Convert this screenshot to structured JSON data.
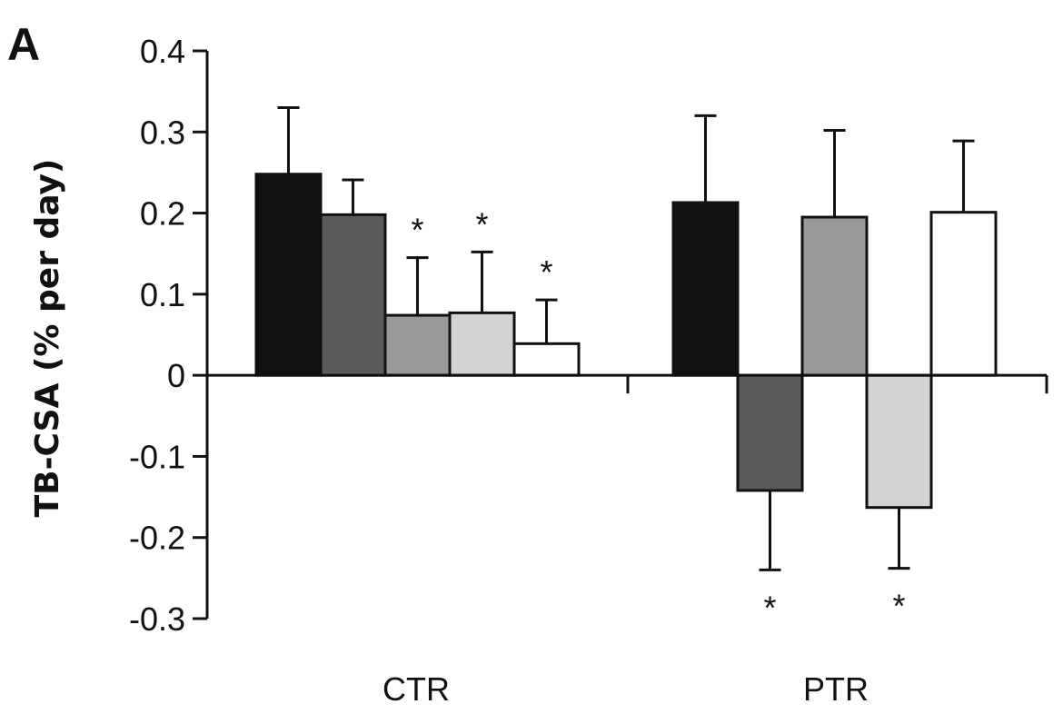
{
  "panel_label": "A",
  "chart_data": {
    "type": "bar",
    "ylabel": "TB-CSA (% per day)",
    "xlabel": "",
    "ylim": [
      -0.3,
      0.4
    ],
    "y_ticks": [
      {
        "value": 0.4,
        "label": "0.4"
      },
      {
        "value": 0.3,
        "label": "0.3"
      },
      {
        "value": 0.2,
        "label": "0.2"
      },
      {
        "value": 0.1,
        "label": "0.1"
      },
      {
        "value": 0,
        "label": "0"
      },
      {
        "value": -0.1,
        "label": "-0.1"
      },
      {
        "value": -0.2,
        "label": "-0.2"
      },
      {
        "value": -0.3,
        "label": "-0.3"
      }
    ],
    "categories": [
      "CTR",
      "PTR"
    ],
    "series": [
      {
        "color": "#111111",
        "values": [
          0.248,
          0.213
        ],
        "errors": [
          0.082,
          0.107
        ],
        "significant": [
          false,
          false
        ]
      },
      {
        "color": "#5a5a5a",
        "values": [
          0.198,
          -0.142
        ],
        "errors": [
          0.043,
          0.098
        ],
        "significant": [
          false,
          true
        ]
      },
      {
        "color": "#999999",
        "values": [
          0.074,
          0.195
        ],
        "errors": [
          0.071,
          0.107
        ],
        "significant": [
          true,
          false
        ]
      },
      {
        "color": "#d3d3d3",
        "values": [
          0.077,
          -0.163
        ],
        "errors": [
          0.075,
          0.075
        ],
        "significant": [
          true,
          true
        ]
      },
      {
        "color": "#ffffff",
        "values": [
          0.039,
          0.201
        ],
        "errors": [
          0.054,
          0.088
        ],
        "significant": [
          true,
          false
        ]
      }
    ],
    "significance_marker": "*",
    "grid": false,
    "legend": "none"
  }
}
